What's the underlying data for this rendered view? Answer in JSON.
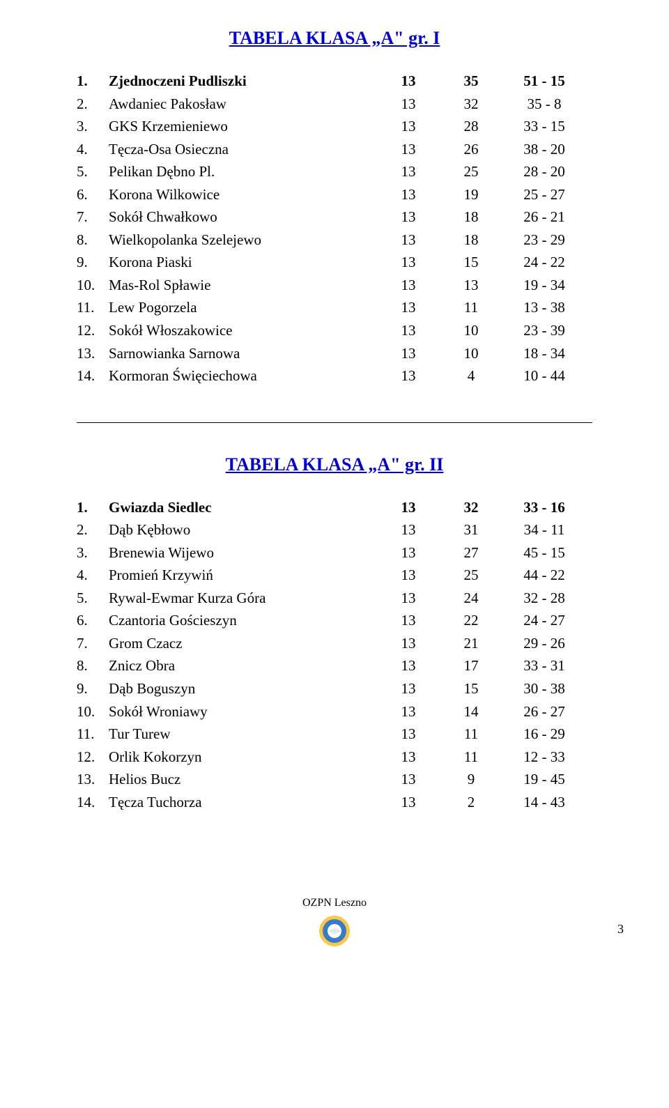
{
  "title_color": "#0000cc",
  "table1": {
    "title": "TABELA   KLASA „A\" gr. I",
    "rows": [
      {
        "n": "1.",
        "team": "Zjednoczeni Pudliszki",
        "p": "13",
        "pts": "35",
        "goals": "51 - 15",
        "bold": true
      },
      {
        "n": "2.",
        "team": "Awdaniec Pakosław",
        "p": "13",
        "pts": "32",
        "goals": "35 - 8",
        "bold": false
      },
      {
        "n": "3.",
        "team": "GKS Krzemieniewo",
        "p": "13",
        "pts": "28",
        "goals": "33 - 15",
        "bold": false
      },
      {
        "n": "4.",
        "team": "Tęcza-Osa Osieczna",
        "p": "13",
        "pts": "26",
        "goals": "38 - 20",
        "bold": false
      },
      {
        "n": "5.",
        "team": "Pelikan Dębno Pl.",
        "p": "13",
        "pts": "25",
        "goals": "28 - 20",
        "bold": false
      },
      {
        "n": "6.",
        "team": "Korona Wilkowice",
        "p": "13",
        "pts": "19",
        "goals": "25 - 27",
        "bold": false
      },
      {
        "n": "7.",
        "team": "Sokół Chwałkowo",
        "p": "13",
        "pts": "18",
        "goals": "26 - 21",
        "bold": false
      },
      {
        "n": "8.",
        "team": "Wielkopolanka Szelejewo",
        "p": "13",
        "pts": "18",
        "goals": "23 - 29",
        "bold": false
      },
      {
        "n": "9.",
        "team": "Korona Piaski",
        "p": "13",
        "pts": "15",
        "goals": "24 - 22",
        "bold": false
      },
      {
        "n": "10.",
        "team": "Mas-Rol Spławie",
        "p": "13",
        "pts": "13",
        "goals": "19 - 34",
        "bold": false
      },
      {
        "n": "11.",
        "team": "Lew Pogorzela",
        "p": "13",
        "pts": "11",
        "goals": "13 - 38",
        "bold": false
      },
      {
        "n": "12.",
        "team": "Sokół Włoszakowice",
        "p": "13",
        "pts": "10",
        "goals": "23 - 39",
        "bold": false
      },
      {
        "n": "13.",
        "team": "Sarnowianka Sarnowa",
        "p": "13",
        "pts": "10",
        "goals": "18 - 34",
        "bold": false
      },
      {
        "n": "14.",
        "team": "Kormoran Święciechowa",
        "p": "13",
        "pts": "4",
        "goals": "10 - 44",
        "bold": false
      }
    ]
  },
  "table2": {
    "title": "TABELA   KLASA „A\" gr. II",
    "rows": [
      {
        "n": "1.",
        "team": "Gwiazda Siedlec",
        "p": "13",
        "pts": "32",
        "goals": "33 - 16",
        "bold": true
      },
      {
        "n": "2.",
        "team": "Dąb Kębłowo",
        "p": "13",
        "pts": "31",
        "goals": "34 - 11",
        "bold": false
      },
      {
        "n": "3.",
        "team": "Brenewia Wijewo",
        "p": "13",
        "pts": "27",
        "goals": "45 - 15",
        "bold": false
      },
      {
        "n": "4.",
        "team": "Promień Krzywiń",
        "p": "13",
        "pts": "25",
        "goals": "44 - 22",
        "bold": false
      },
      {
        "n": "5.",
        "team": "Rywal-Ewmar Kurza Góra",
        "p": "13",
        "pts": "24",
        "goals": "32 - 28",
        "bold": false
      },
      {
        "n": "6.",
        "team": "Czantoria Gościeszyn",
        "p": "13",
        "pts": "22",
        "goals": "24 - 27",
        "bold": false
      },
      {
        "n": "7.",
        "team": "Grom Czacz",
        "p": "13",
        "pts": "21",
        "goals": "29 - 26",
        "bold": false
      },
      {
        "n": "8.",
        "team": "Znicz Obra",
        "p": "13",
        "pts": "17",
        "goals": "33 - 31",
        "bold": false
      },
      {
        "n": "9.",
        "team": "Dąb Boguszyn",
        "p": "13",
        "pts": "15",
        "goals": "30 - 38",
        "bold": false
      },
      {
        "n": "10.",
        "team": "Sokół Wroniawy",
        "p": "13",
        "pts": "14",
        "goals": "26 - 27",
        "bold": false
      },
      {
        "n": "11.",
        "team": "Tur Turew",
        "p": "13",
        "pts": "11",
        "goals": "16 - 29",
        "bold": false
      },
      {
        "n": "12.",
        "team": "Orlik Kokorzyn",
        "p": "13",
        "pts": "11",
        "goals": "12 - 33",
        "bold": false
      },
      {
        "n": "13.",
        "team": "Helios Bucz",
        "p": "13",
        "pts": "9",
        "goals": "19 - 45",
        "bold": false
      },
      {
        "n": "14.",
        "team": "Tęcza Tuchorza",
        "p": "13",
        "pts": "2",
        "goals": "14 - 43",
        "bold": false
      }
    ]
  },
  "footer": {
    "text": "OZPN Leszno",
    "page_number": "3",
    "logo_colors": {
      "outer": "#f6c94a",
      "mid": "#3b7ac7",
      "inner": "#ffffff",
      "accent": "#e6e6e6"
    }
  }
}
